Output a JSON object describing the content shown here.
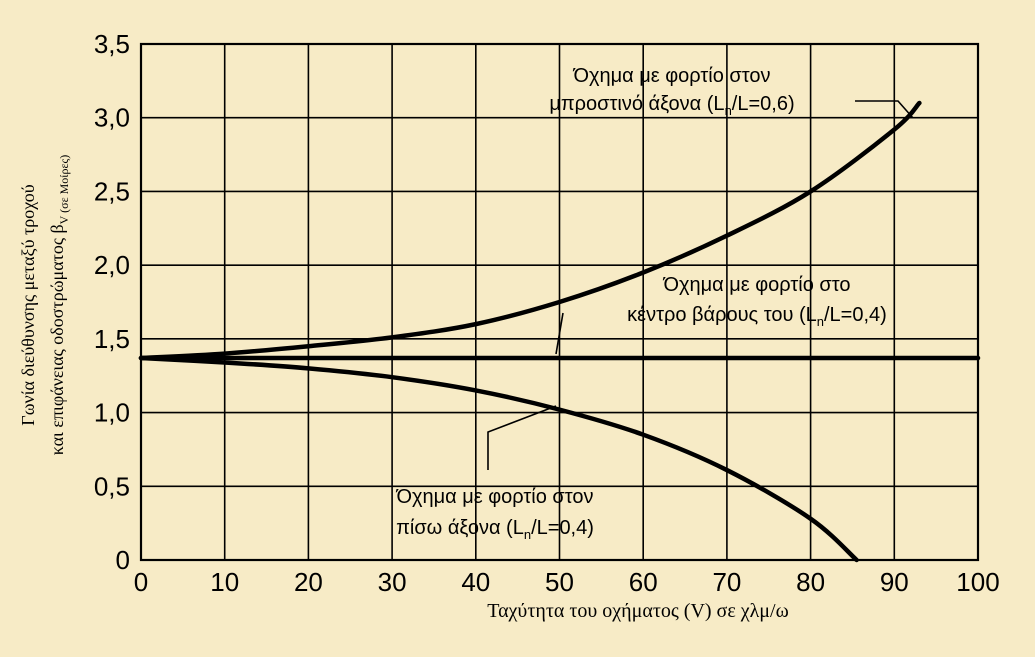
{
  "colors": {
    "background": "#f7ebc6",
    "ink": "#000000"
  },
  "chart_data": {
    "type": "line",
    "xlabel": "Ταχύτητα του οχήματος (V) σε χλμ/ω",
    "ylabel_line1": "Γωνία διεύθυνσης μεταξύ τροχού",
    "ylabel_line2_main": "και επιφάνειας οδοστρώματος β",
    "ylabel_line2_sub": "V (σε Μοίρες)",
    "xlim": [
      0,
      100
    ],
    "ylim": [
      0,
      3.5
    ],
    "grid": true,
    "xticks": [
      0,
      10,
      20,
      30,
      40,
      50,
      60,
      70,
      80,
      90,
      100
    ],
    "xtick_labels": [
      "0",
      "10",
      "20",
      "30",
      "40",
      "50",
      "60",
      "70",
      "80",
      "90",
      "100"
    ],
    "yticks": [
      0,
      0.5,
      1.0,
      1.5,
      2.0,
      2.5,
      3.0,
      3.5
    ],
    "ytick_labels": [
      "0",
      "0,5",
      "1,0",
      "1,5",
      "2,0",
      "2,5",
      "3,0",
      "3,5"
    ],
    "series": [
      {
        "key": "front",
        "x": [
          0,
          10,
          20,
          30,
          40,
          50,
          60,
          70,
          80,
          90,
          93
        ],
        "y": [
          1.37,
          1.4,
          1.45,
          1.51,
          1.6,
          1.75,
          1.95,
          2.2,
          2.5,
          2.92,
          3.1
        ]
      },
      {
        "key": "center",
        "x": [
          0,
          100
        ],
        "y": [
          1.37,
          1.37
        ]
      },
      {
        "key": "rear",
        "x": [
          0,
          10,
          20,
          30,
          40,
          50,
          60,
          70,
          80,
          85.5
        ],
        "y": [
          1.37,
          1.34,
          1.3,
          1.24,
          1.15,
          1.02,
          0.85,
          0.61,
          0.28,
          0.0
        ]
      }
    ],
    "annotations": [
      {
        "key": "front",
        "line1": "Όχημα με φορτίο στον",
        "line2_pre": "μπροστινό άξονα (L",
        "sub": "n",
        "line2_post": "/L=0,6)"
      },
      {
        "key": "center",
        "line1": "Όχημα με φορτίο στο",
        "line2_pre": "κέντρο βάρους του (L",
        "sub": "n",
        "line2_post": "/L=0,4)"
      },
      {
        "key": "rear",
        "line1": "Όχημα με φορτίο στον",
        "line2_pre": "πίσω άξονα (L",
        "sub": "n",
        "line2_post": "/L=0,4)"
      }
    ]
  }
}
